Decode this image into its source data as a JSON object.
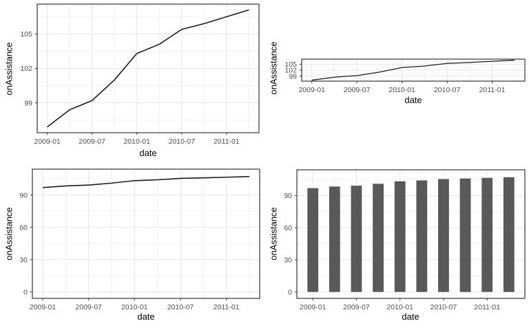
{
  "page": {
    "background": "#FFFFFF",
    "description": "2x2 grid of ggplot-style charts"
  },
  "colors": {
    "panel_border": "#333333",
    "grid_major": "#E6E6E6",
    "grid_minor": "#F2F2F2",
    "line": "#1A1A1A",
    "bar_fill": "#595959",
    "tick_text": "#4D4D4D",
    "tick_mark": "#333333",
    "title_text": "#000000"
  },
  "chart_data": [
    {
      "id": "top-left-line",
      "type": "line",
      "title": "",
      "xlabel": "date",
      "ylabel": "onAssistance",
      "legend": "none",
      "grid": true,
      "categories": [
        "2009-01",
        "2009-04",
        "2009-07",
        "2009-10",
        "2010-01",
        "2010-04",
        "2010-07",
        "2010-10",
        "2011-01",
        "2011-04"
      ],
      "x_months": [
        0,
        3,
        6,
        9,
        12,
        15,
        18,
        21,
        24,
        27
      ],
      "values": [
        96.9,
        98.4,
        99.2,
        101.0,
        103.3,
        104.1,
        105.4,
        105.9,
        106.5,
        107.1
      ],
      "x_major_ticks": {
        "months": [
          0,
          6,
          12,
          18,
          24
        ],
        "labels": [
          "2009-01",
          "2009-07",
          "2010-01",
          "2010-07",
          "2011-01"
        ]
      },
      "x_minor_months": [
        3,
        9,
        15,
        21,
        27
      ],
      "y_ticks": [
        99,
        102,
        105
      ],
      "y_minor": [
        97.5,
        100.5,
        103.5,
        106.5
      ],
      "xlim": [
        -1.35,
        28.35
      ],
      "ylim": [
        96.4,
        107.6
      ]
    },
    {
      "id": "top-right-line-compressed",
      "type": "line",
      "title": "",
      "xlabel": "date",
      "ylabel": "onAssistance",
      "legend": "none",
      "grid": true,
      "categories": [
        "2009-01",
        "2009-04",
        "2009-07",
        "2009-10",
        "2010-01",
        "2010-04",
        "2010-07",
        "2010-10",
        "2011-01",
        "2011-04"
      ],
      "x_months": [
        0,
        3,
        6,
        9,
        12,
        15,
        18,
        21,
        24,
        27
      ],
      "values": [
        96.9,
        98.4,
        99.2,
        101.0,
        103.3,
        104.1,
        105.4,
        105.9,
        106.5,
        107.1
      ],
      "x_major_ticks": {
        "months": [
          0,
          6,
          12,
          18,
          24
        ],
        "labels": [
          "2009-01",
          "2009-07",
          "2010-01",
          "2010-07",
          "2011-01"
        ]
      },
      "x_minor_months": [
        3,
        9,
        15,
        21,
        27
      ],
      "y_ticks": [
        99,
        102,
        105
      ],
      "y_minor": [
        97.5,
        100.5,
        103.5,
        106.5
      ],
      "xlim": [
        -1.35,
        28.35
      ],
      "ylim": [
        96.4,
        107.6
      ]
    },
    {
      "id": "bottom-left-line-zero-based",
      "type": "line",
      "title": "",
      "xlabel": "date",
      "ylabel": "onAssistance",
      "legend": "none",
      "grid": true,
      "categories": [
        "2009-01",
        "2009-04",
        "2009-07",
        "2009-10",
        "2010-01",
        "2010-04",
        "2010-07",
        "2010-10",
        "2011-01",
        "2011-04"
      ],
      "x_months": [
        0,
        3,
        6,
        9,
        12,
        15,
        18,
        21,
        24,
        27
      ],
      "values": [
        96.9,
        98.4,
        99.2,
        101.0,
        103.3,
        104.1,
        105.4,
        105.9,
        106.5,
        107.1
      ],
      "x_major_ticks": {
        "months": [
          0,
          6,
          12,
          18,
          24
        ],
        "labels": [
          "2009-01",
          "2009-07",
          "2010-01",
          "2010-07",
          "2011-01"
        ]
      },
      "x_minor_months": [
        3,
        9,
        15,
        21,
        27
      ],
      "y_ticks": [
        0,
        30,
        60,
        90
      ],
      "y_minor": [
        15,
        45,
        75,
        105
      ],
      "xlim": [
        -1.35,
        28.35
      ],
      "ylim": [
        -6,
        114
      ]
    },
    {
      "id": "bottom-right-bar",
      "type": "bar",
      "title": "",
      "xlabel": "date",
      "ylabel": "onAssistance",
      "legend": "none",
      "grid": true,
      "categories": [
        "2009-01",
        "2009-04",
        "2009-07",
        "2009-10",
        "2010-01",
        "2010-04",
        "2010-07",
        "2010-10",
        "2011-01",
        "2011-04"
      ],
      "x_months": [
        0,
        3,
        6,
        9,
        12,
        15,
        18,
        21,
        24,
        27
      ],
      "values": [
        96.9,
        98.4,
        99.2,
        101.0,
        103.3,
        104.1,
        105.4,
        105.9,
        106.5,
        107.1
      ],
      "bar_width_months": 1.5,
      "x_major_ticks": {
        "months": [
          0,
          6,
          12,
          18,
          24
        ],
        "labels": [
          "2009-01",
          "2009-07",
          "2010-01",
          "2010-07",
          "2011-01"
        ]
      },
      "x_minor_months": [
        3,
        9,
        15,
        21,
        27
      ],
      "y_ticks": [
        0,
        30,
        60,
        90
      ],
      "y_minor": [
        15,
        45,
        75,
        105
      ],
      "xlim": [
        -2.2,
        29.2
      ],
      "ylim": [
        -6,
        114
      ]
    }
  ]
}
